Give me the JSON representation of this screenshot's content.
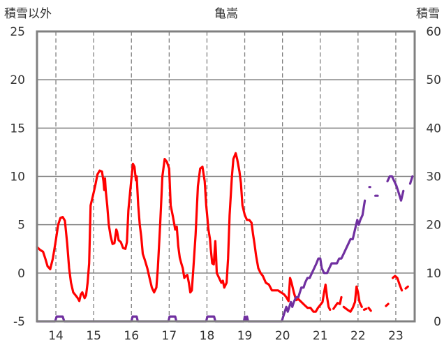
{
  "chart_data": {
    "type": "line",
    "title": "亀嵩",
    "ylabel_left": "積雪以外",
    "ylabel_right": "積雪",
    "y_left": {
      "min": -5,
      "max": 25,
      "ticks": [
        -5,
        0,
        5,
        10,
        15,
        20,
        25
      ]
    },
    "y_right": {
      "min": 0,
      "max": 60,
      "ticks": [
        0,
        10,
        20,
        30,
        40,
        50,
        60
      ]
    },
    "x": {
      "min": 13.5,
      "max": 23.5,
      "ticks": [
        14,
        15,
        16,
        17,
        18,
        19,
        20,
        21,
        22,
        23
      ],
      "tick_labels": [
        "14",
        "15",
        "16",
        "17",
        "18",
        "19",
        "20",
        "21",
        "22",
        "23"
      ]
    },
    "grid": {
      "vertical_dashed": true,
      "horizontal_solid": true
    },
    "colors": {
      "temperature": "#ff0000",
      "snow": "#7030a0",
      "grid": "#808080",
      "frame": "#808080"
    },
    "series": [
      {
        "axis": "left",
        "color": "#ff0000",
        "segments": [
          [
            [
              13.5,
              2.7
            ],
            [
              13.58,
              2.4
            ],
            [
              13.66,
              2.2
            ],
            [
              13.72,
              1.5
            ],
            [
              13.78,
              0.7
            ],
            [
              13.85,
              0.4
            ],
            [
              13.92,
              1.5
            ],
            [
              14.0,
              3.4
            ],
            [
              14.06,
              5.0
            ],
            [
              14.12,
              5.7
            ],
            [
              14.18,
              5.8
            ],
            [
              14.24,
              5.4
            ],
            [
              14.3,
              3.0
            ],
            [
              14.35,
              0.5
            ],
            [
              14.4,
              -1.0
            ],
            [
              14.46,
              -2.0
            ],
            [
              14.52,
              -2.3
            ],
            [
              14.58,
              -2.6
            ],
            [
              14.62,
              -2.9
            ],
            [
              14.66,
              -2.2
            ],
            [
              14.7,
              -2.0
            ],
            [
              14.76,
              -2.6
            ],
            [
              14.8,
              -2.3
            ],
            [
              14.84,
              -1.0
            ],
            [
              14.88,
              1.0
            ],
            [
              14.92,
              7.0
            ],
            [
              14.98,
              8.0
            ],
            [
              15.04,
              9.0
            ],
            [
              15.1,
              10.2
            ],
            [
              15.16,
              10.6
            ],
            [
              15.22,
              10.5
            ],
            [
              15.26,
              9.5
            ],
            [
              15.28,
              8.6
            ],
            [
              15.3,
              9.8
            ],
            [
              15.32,
              8.5
            ],
            [
              15.36,
              7.0
            ],
            [
              15.4,
              5.0
            ],
            [
              15.45,
              3.8
            ],
            [
              15.5,
              3.0
            ],
            [
              15.55,
              3.1
            ],
            [
              15.6,
              4.5
            ],
            [
              15.62,
              4.3
            ],
            [
              15.66,
              3.4
            ],
            [
              15.72,
              3.2
            ],
            [
              15.78,
              2.6
            ],
            [
              15.84,
              2.5
            ],
            [
              15.88,
              3.2
            ],
            [
              15.92,
              6.5
            ],
            [
              15.98,
              9.0
            ],
            [
              16.04,
              11.3
            ],
            [
              16.08,
              11.0
            ],
            [
              16.12,
              9.6
            ],
            [
              16.14,
              10.0
            ],
            [
              16.18,
              7.0
            ],
            [
              16.22,
              5.0
            ],
            [
              16.26,
              3.8
            ],
            [
              16.3,
              2.0
            ],
            [
              16.36,
              1.3
            ],
            [
              16.42,
              0.5
            ],
            [
              16.48,
              -0.5
            ],
            [
              16.54,
              -1.5
            ],
            [
              16.6,
              -2.0
            ],
            [
              16.66,
              -1.5
            ],
            [
              16.7,
              0.5
            ],
            [
              16.76,
              5.0
            ],
            [
              16.82,
              10.0
            ],
            [
              16.88,
              11.8
            ],
            [
              16.94,
              11.5
            ],
            [
              17.0,
              10.8
            ],
            [
              17.04,
              7.0
            ],
            [
              17.1,
              5.8
            ],
            [
              17.16,
              4.5
            ],
            [
              17.2,
              4.8
            ],
            [
              17.24,
              2.8
            ],
            [
              17.28,
              1.6
            ],
            [
              17.32,
              1.0
            ],
            [
              17.36,
              0.5
            ],
            [
              17.4,
              -0.5
            ],
            [
              17.44,
              -0.3
            ],
            [
              17.48,
              -0.2
            ],
            [
              17.52,
              -1.0
            ],
            [
              17.56,
              -2.0
            ],
            [
              17.6,
              -1.8
            ],
            [
              17.64,
              0.5
            ],
            [
              17.7,
              4.0
            ],
            [
              17.76,
              9.0
            ],
            [
              17.82,
              10.8
            ],
            [
              17.88,
              11.0
            ],
            [
              17.94,
              9.5
            ],
            [
              17.98,
              7.0
            ],
            [
              18.04,
              4.5
            ],
            [
              18.08,
              3.5
            ],
            [
              18.1,
              2.5
            ],
            [
              18.14,
              1.0
            ],
            [
              18.18,
              0.9
            ],
            [
              18.22,
              3.3
            ],
            [
              18.24,
              2.0
            ],
            [
              18.26,
              0.0
            ],
            [
              18.32,
              -0.5
            ],
            [
              18.38,
              -1.0
            ],
            [
              18.42,
              -0.8
            ],
            [
              18.46,
              -1.5
            ],
            [
              18.52,
              -1.0
            ],
            [
              18.56,
              1.5
            ],
            [
              18.6,
              6.0
            ],
            [
              18.66,
              10.0
            ],
            [
              18.7,
              11.8
            ],
            [
              18.76,
              12.4
            ],
            [
              18.8,
              11.8
            ],
            [
              18.86,
              10.5
            ],
            [
              18.9,
              9.3
            ],
            [
              18.94,
              7.0
            ],
            [
              19.0,
              6.0
            ],
            [
              19.06,
              5.5
            ],
            [
              19.12,
              5.5
            ],
            [
              19.18,
              5.2
            ],
            [
              19.22,
              4.0
            ],
            [
              19.26,
              3.0
            ],
            [
              19.3,
              1.8
            ],
            [
              19.36,
              0.5
            ],
            [
              19.42,
              0.0
            ],
            [
              19.48,
              -0.3
            ],
            [
              19.56,
              -1.0
            ],
            [
              19.64,
              -1.2
            ],
            [
              19.72,
              -1.8
            ],
            [
              19.8,
              -1.8
            ],
            [
              19.88,
              -1.8
            ],
            [
              19.96,
              -2.0
            ],
            [
              20.04,
              -2.2
            ],
            [
              20.1,
              -2.5
            ],
            [
              20.16,
              -2.9
            ],
            [
              20.2,
              -0.5
            ],
            [
              20.24,
              -1.0
            ],
            [
              20.3,
              -2.0
            ],
            [
              20.36,
              -2.8
            ],
            [
              20.42,
              -2.7
            ],
            [
              20.5,
              -3.0
            ],
            [
              20.58,
              -3.3
            ],
            [
              20.66,
              -3.6
            ],
            [
              20.74,
              -3.6
            ],
            [
              20.82,
              -4.0
            ],
            [
              20.88,
              -4.0
            ],
            [
              20.94,
              -3.6
            ],
            [
              21.0,
              -3.3
            ],
            [
              21.06,
              -3.0
            ],
            [
              21.1,
              -2.0
            ],
            [
              21.14,
              -1.2
            ],
            [
              21.18,
              -2.5
            ],
            [
              21.22,
              -3.5
            ],
            [
              21.26,
              -3.8
            ]
          ],
          [
            [
              21.35,
              -3.7
            ],
            [
              21.42,
              -3.3
            ],
            [
              21.46,
              -3.1
            ],
            [
              21.52,
              -3.2
            ],
            [
              21.56,
              -2.5
            ]
          ],
          [
            [
              21.62,
              -3.5
            ],
            [
              21.72,
              -3.8
            ],
            [
              21.8,
              -4.0
            ],
            [
              21.86,
              -3.6
            ],
            [
              21.92,
              -3.0
            ],
            [
              21.96,
              -1.4
            ],
            [
              22.0,
              -2.0
            ],
            [
              22.04,
              -3.0
            ],
            [
              22.1,
              -3.5
            ]
          ],
          [
            [
              22.16,
              -3.8
            ],
            [
              22.22,
              -3.7
            ]
          ],
          [
            [
              22.28,
              -3.6
            ],
            [
              22.34,
              -3.9
            ]
          ],
          [
            [
              22.74,
              -3.4
            ],
            [
              22.8,
              -3.2
            ]
          ],
          [
            [
              22.92,
              -0.5
            ],
            [
              22.98,
              -0.3
            ],
            [
              23.04,
              -0.5
            ],
            [
              23.1,
              -1.2
            ],
            [
              23.16,
              -1.8
            ]
          ],
          [
            [
              23.26,
              -1.6
            ],
            [
              23.32,
              -1.4
            ]
          ]
        ]
      },
      {
        "axis": "right",
        "color": "#7030a0",
        "segments": [
          [
            [
              13.5,
              0
            ],
            [
              13.98,
              0
            ],
            [
              14.02,
              1
            ],
            [
              14.18,
              1
            ],
            [
              14.22,
              0
            ],
            [
              16.0,
              0
            ],
            [
              16.03,
              1
            ],
            [
              16.14,
              1
            ],
            [
              16.17,
              0
            ],
            [
              16.98,
              0
            ],
            [
              17.01,
              1
            ],
            [
              17.16,
              1
            ],
            [
              17.19,
              0
            ],
            [
              17.98,
              0
            ],
            [
              18.01,
              1
            ],
            [
              18.19,
              1
            ],
            [
              18.22,
              0
            ],
            [
              18.98,
              0
            ],
            [
              19.0,
              1
            ],
            [
              19.03,
              0
            ],
            [
              19.06,
              1
            ],
            [
              19.09,
              0
            ],
            [
              19.98,
              0
            ],
            [
              20.02,
              1
            ],
            [
              20.06,
              2
            ],
            [
              20.1,
              3
            ],
            [
              20.14,
              2
            ],
            [
              20.18,
              3
            ],
            [
              20.22,
              4
            ],
            [
              20.26,
              3
            ],
            [
              20.3,
              4
            ],
            [
              20.36,
              5
            ],
            [
              20.42,
              5
            ],
            [
              20.46,
              6
            ],
            [
              20.5,
              7
            ],
            [
              20.56,
              7
            ],
            [
              20.6,
              8
            ],
            [
              20.66,
              9
            ],
            [
              20.72,
              9
            ],
            [
              20.78,
              10
            ],
            [
              20.84,
              11
            ],
            [
              20.9,
              12
            ],
            [
              20.95,
              13
            ],
            [
              21.0,
              13
            ],
            [
              21.04,
              11
            ],
            [
              21.1,
              10
            ],
            [
              21.18,
              10
            ],
            [
              21.24,
              11
            ],
            [
              21.3,
              12
            ],
            [
              21.36,
              12
            ],
            [
              21.44,
              12
            ],
            [
              21.5,
              13
            ],
            [
              21.56,
              13
            ],
            [
              21.62,
              14
            ],
            [
              21.68,
              15
            ],
            [
              21.74,
              16
            ],
            [
              21.8,
              17
            ],
            [
              21.86,
              17
            ],
            [
              21.92,
              19
            ],
            [
              21.98,
              21
            ],
            [
              22.02,
              20
            ],
            [
              22.06,
              21
            ],
            [
              22.12,
              22
            ],
            [
              22.18,
              25
            ]
          ],
          [
            [
              22.3,
              27.8
            ],
            [
              22.32,
              27.8
            ]
          ],
          [
            [
              22.46,
              26.0
            ],
            [
              22.52,
              26.0
            ]
          ],
          [
            [
              22.78,
              29.0
            ],
            [
              22.84,
              30.0
            ],
            [
              22.9,
              30.0
            ],
            [
              22.96,
              29.0
            ],
            [
              23.02,
              28.0
            ],
            [
              23.08,
              26.5
            ],
            [
              23.14,
              25.0
            ],
            [
              23.2,
              27.0
            ]
          ],
          [
            [
              23.38,
              28.5
            ],
            [
              23.44,
              30.0
            ]
          ]
        ]
      }
    ]
  }
}
